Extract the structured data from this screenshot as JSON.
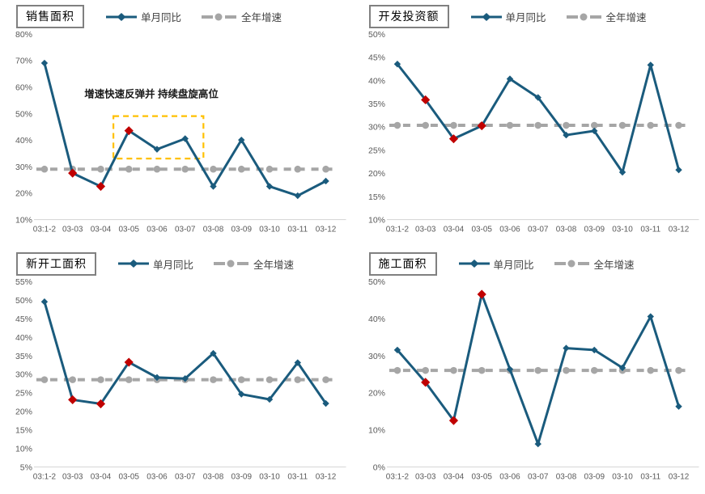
{
  "colors": {
    "series_blue": "#1A5B7D",
    "series_gray": "#A6A6A6",
    "flag_red": "#C00000",
    "annotation_yellow": "#FFC000",
    "axis_text": "#595959",
    "axis_line": "#D9D9D9",
    "title_border": "#808080",
    "legend_text": "#404040"
  },
  "chart_data": [
    {
      "type": "line",
      "title": "销售面积",
      "legend_position": "top",
      "grid": false,
      "categories": [
        "03:1-2",
        "03-03",
        "03-04",
        "03-05",
        "03-06",
        "03-07",
        "03-08",
        "03-09",
        "03-10",
        "03-11",
        "03-12"
      ],
      "ylim": [
        10,
        80
      ],
      "ytick_step": 10,
      "yticks": [
        "80%",
        "70%",
        "60%",
        "50%",
        "40%",
        "30%",
        "20%",
        "10%"
      ],
      "series": [
        {
          "name": "单月同比",
          "color": "#1A5B7D",
          "marker": "diamond",
          "line_style": "solid",
          "values": [
            69,
            27.5,
            22.5,
            43.5,
            36.5,
            40.5,
            22.5,
            40,
            22.5,
            19,
            24.5
          ],
          "flagged_point_indices": [
            1,
            2,
            3
          ],
          "flag_color": "#C00000"
        },
        {
          "name": "全年增速",
          "color": "#A6A6A6",
          "marker": "circle",
          "line_style": "dashed",
          "values": [
            29,
            29,
            29,
            29,
            29,
            29,
            29,
            29,
            29,
            29,
            29
          ]
        }
      ],
      "annotation": {
        "text": "增速快速反弹并 持续盘旋高位",
        "box": {
          "x_from_index": 2.45,
          "x_to_index": 5.65,
          "value_from": 33,
          "value_to": 49
        },
        "text_at": {
          "x_index": 3.8,
          "value": 56
        }
      }
    },
    {
      "type": "line",
      "title": "开发投资额",
      "legend_position": "top",
      "grid": false,
      "categories": [
        "03:1-2",
        "03-03",
        "03-04",
        "03-05",
        "03-06",
        "03-07",
        "03-08",
        "03-09",
        "03-10",
        "03-11",
        "03-12"
      ],
      "ylim": [
        10,
        50
      ],
      "ytick_step": 5,
      "yticks": [
        "50%",
        "45%",
        "40%",
        "35%",
        "30%",
        "25%",
        "20%",
        "15%",
        "10%"
      ],
      "series": [
        {
          "name": "单月同比",
          "color": "#1A5B7D",
          "marker": "diamond",
          "line_style": "solid",
          "values": [
            43.5,
            35.8,
            27.4,
            30.2,
            40.3,
            36.3,
            28.2,
            29.1,
            20.2,
            43.3,
            20.7
          ],
          "flagged_point_indices": [
            1,
            2,
            3
          ],
          "flag_color": "#C00000"
        },
        {
          "name": "全年增速",
          "color": "#A6A6A6",
          "marker": "circle",
          "line_style": "dashed",
          "values": [
            30.3,
            30.3,
            30.3,
            30.3,
            30.3,
            30.3,
            30.3,
            30.3,
            30.3,
            30.3,
            30.3
          ]
        }
      ]
    },
    {
      "type": "line",
      "title": "新开工面积",
      "legend_position": "top",
      "grid": false,
      "categories": [
        "03:1-2",
        "03-03",
        "03-04",
        "03-05",
        "03-06",
        "03-07",
        "03-08",
        "03-09",
        "03-10",
        "03-11",
        "03-12"
      ],
      "ylim": [
        5,
        55
      ],
      "ytick_step": 5,
      "yticks": [
        "55%",
        "50%",
        "45%",
        "40%",
        "35%",
        "30%",
        "25%",
        "20%",
        "15%",
        "10%",
        "5%"
      ],
      "series": [
        {
          "name": "单月同比",
          "color": "#1A5B7D",
          "marker": "diamond",
          "line_style": "solid",
          "values": [
            49.5,
            23.1,
            22,
            33.2,
            29.1,
            28.8,
            35.6,
            24.6,
            23.2,
            33.1,
            22.1
          ],
          "flagged_point_indices": [
            1,
            2,
            3
          ],
          "flag_color": "#C00000"
        },
        {
          "name": "全年增速",
          "color": "#A6A6A6",
          "marker": "circle",
          "line_style": "dashed",
          "values": [
            28.5,
            28.5,
            28.5,
            28.5,
            28.5,
            28.5,
            28.5,
            28.5,
            28.5,
            28.5,
            28.5
          ]
        }
      ]
    },
    {
      "type": "line",
      "title": "施工面积",
      "legend_position": "top",
      "grid": false,
      "categories": [
        "03:1-2",
        "03-03",
        "03-04",
        "03-05",
        "03-06",
        "03-07",
        "03-08",
        "03-09",
        "03-10",
        "03-11",
        "03-12"
      ],
      "ylim": [
        0,
        50
      ],
      "ytick_step": 10,
      "yticks": [
        "50%",
        "40%",
        "30%",
        "20%",
        "10%",
        "0%"
      ],
      "series": [
        {
          "name": "单月同比",
          "color": "#1A5B7D",
          "marker": "diamond",
          "line_style": "solid",
          "values": [
            31.5,
            22.8,
            12.5,
            46.5,
            26.3,
            6.2,
            32,
            31.5,
            26.7,
            40.5,
            16.3
          ],
          "flagged_point_indices": [
            1,
            2,
            3
          ],
          "flag_color": "#C00000"
        },
        {
          "name": "全年增速",
          "color": "#A6A6A6",
          "marker": "circle",
          "line_style": "dashed",
          "values": [
            26,
            26,
            26,
            26,
            26,
            26,
            26,
            26,
            26,
            26,
            26
          ]
        }
      ]
    }
  ]
}
